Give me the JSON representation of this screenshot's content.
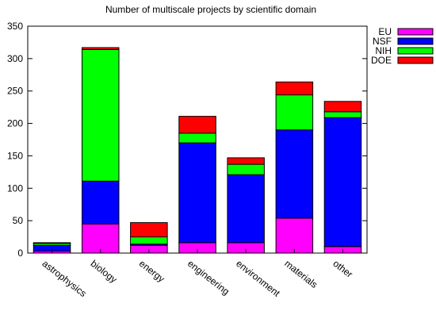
{
  "chart_data": {
    "type": "bar",
    "stacked": true,
    "title": "Number of multiscale projects by scientific domain",
    "xlabel": "",
    "ylabel": "",
    "ylim": [
      0,
      350
    ],
    "yticks": [
      0,
      50,
      100,
      150,
      200,
      250,
      300,
      350
    ],
    "grid": false,
    "legend_position": "top-right",
    "categories": [
      "astrophysics",
      "biology",
      "energy",
      "engineering",
      "environment",
      "materials",
      "other"
    ],
    "series": [
      {
        "name": "EU",
        "color": "#ff00ff",
        "values": [
          3,
          45,
          12,
          16,
          16,
          54,
          10
        ]
      },
      {
        "name": "NSF",
        "color": "#0000ff",
        "values": [
          9,
          66,
          2,
          154,
          105,
          136,
          199
        ]
      },
      {
        "name": "NIH",
        "color": "#00ff00",
        "values": [
          3,
          203,
          11,
          15,
          16,
          54,
          9
        ]
      },
      {
        "name": "DOE",
        "color": "#ff0000",
        "values": [
          1,
          3,
          22,
          26,
          10,
          20,
          16
        ]
      }
    ]
  }
}
